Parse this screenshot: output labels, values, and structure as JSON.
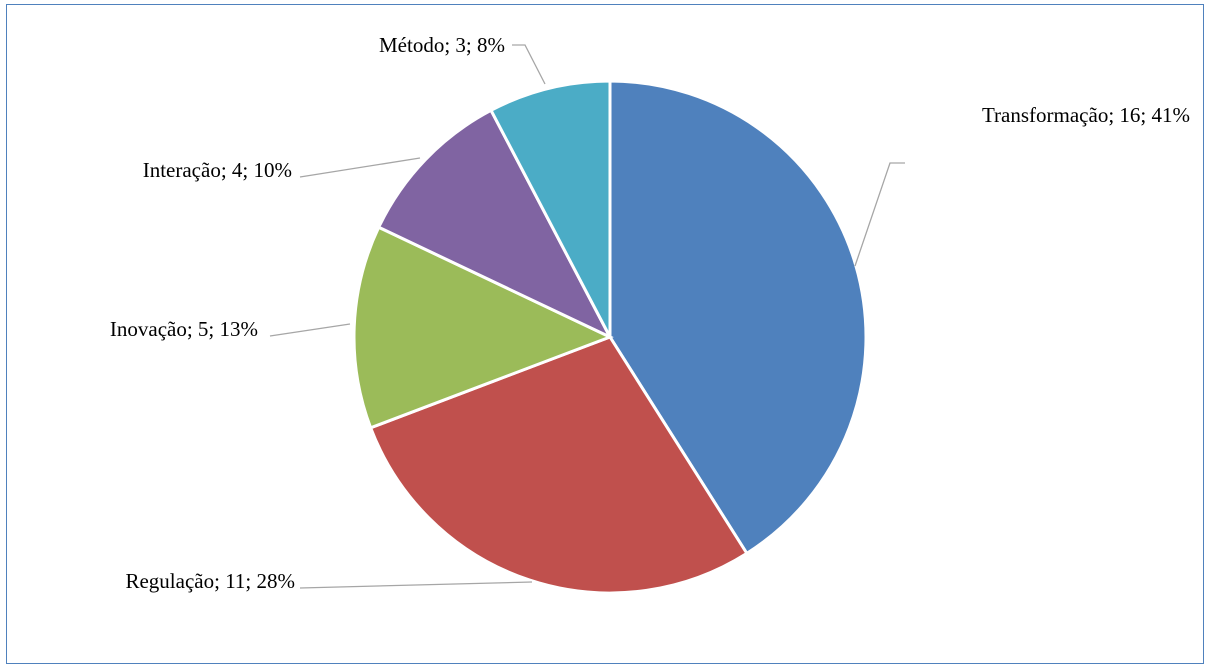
{
  "chart_data": {
    "type": "pie",
    "title": "",
    "start_angle_deg": 0,
    "direction": "clockwise",
    "slices": [
      {
        "category": "Transformação",
        "value": 16,
        "percent": "41%",
        "label": "Transformação; 16; 41%",
        "color": "#4f81bd"
      },
      {
        "category": "Regulação",
        "value": 11,
        "percent": "28%",
        "label": "Regulação; 11; 28%",
        "color": "#c0504d"
      },
      {
        "category": "Inovação",
        "value": 5,
        "percent": "13%",
        "label": "Inovação; 5; 13%",
        "color": "#9bbb59"
      },
      {
        "category": "Interação",
        "value": 4,
        "percent": "10%",
        "label": "Interação; 4; 10%",
        "color": "#8064a2"
      },
      {
        "category": "Método",
        "value": 3,
        "percent": "8%",
        "label": "Método; 3; 8%",
        "color": "#4bacc6"
      }
    ],
    "legend": "none",
    "label_format": "category; value; percent",
    "border_color": "#4f81bd",
    "leader_line_color": "#a6a6a6"
  }
}
